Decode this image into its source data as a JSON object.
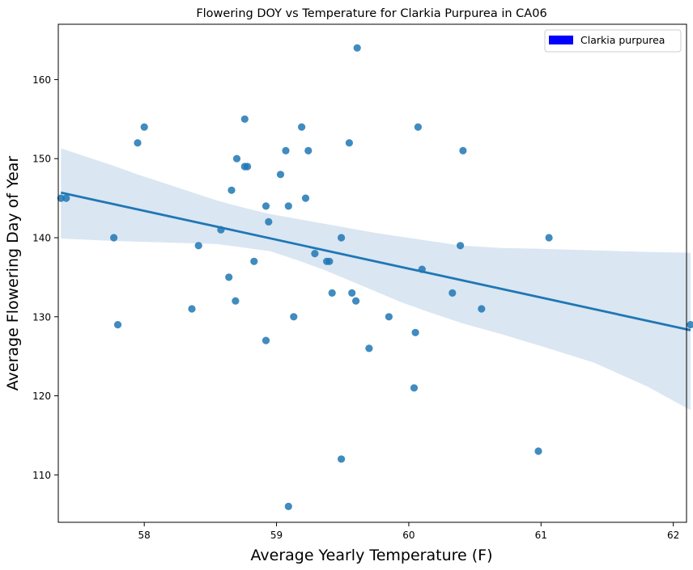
{
  "chart_data": {
    "type": "scatter",
    "title": "Flowering DOY vs Temperature for Clarkia Purpurea in CA06",
    "xlabel": "Average Yearly Temperature (F)",
    "ylabel": "Average Flowering Day of Year",
    "xlim": [
      57.35,
      62.1
    ],
    "ylim": [
      104.0,
      167.0
    ],
    "xticks": [
      "58",
      "59",
      "60",
      "61",
      "62"
    ],
    "yticks": [
      "110",
      "120",
      "130",
      "140",
      "150",
      "160"
    ],
    "legend": {
      "label": "Clarkia purpurea",
      "color": "#0000ff",
      "position": "top-right"
    },
    "grid": false,
    "series": [
      {
        "name": "Clarkia purpurea",
        "color": "#1f77b4",
        "points": [
          [
            57.37,
            145
          ],
          [
            57.41,
            145
          ],
          [
            57.77,
            140
          ],
          [
            57.8,
            129
          ],
          [
            57.95,
            152
          ],
          [
            58.0,
            154
          ],
          [
            58.36,
            131
          ],
          [
            58.41,
            139
          ],
          [
            58.58,
            141
          ],
          [
            58.64,
            135
          ],
          [
            58.66,
            146
          ],
          [
            58.69,
            132
          ],
          [
            58.7,
            150
          ],
          [
            58.76,
            155
          ],
          [
            58.76,
            149
          ],
          [
            58.78,
            149
          ],
          [
            58.83,
            137
          ],
          [
            58.92,
            144
          ],
          [
            58.92,
            127
          ],
          [
            58.94,
            142
          ],
          [
            59.03,
            148
          ],
          [
            59.07,
            151
          ],
          [
            59.09,
            144
          ],
          [
            59.09,
            106
          ],
          [
            59.13,
            130
          ],
          [
            59.19,
            154
          ],
          [
            59.22,
            145
          ],
          [
            59.24,
            151
          ],
          [
            59.29,
            138
          ],
          [
            59.38,
            137
          ],
          [
            59.4,
            137
          ],
          [
            59.42,
            133
          ],
          [
            59.49,
            140
          ],
          [
            59.49,
            112
          ],
          [
            59.55,
            152
          ],
          [
            59.57,
            133
          ],
          [
            59.6,
            132
          ],
          [
            59.61,
            164
          ],
          [
            59.7,
            126
          ],
          [
            59.85,
            130
          ],
          [
            60.04,
            121
          ],
          [
            60.05,
            128
          ],
          [
            60.07,
            154
          ],
          [
            60.1,
            136
          ],
          [
            60.33,
            133
          ],
          [
            60.39,
            139
          ],
          [
            60.41,
            151
          ],
          [
            60.55,
            131
          ],
          [
            60.98,
            113
          ],
          [
            61.06,
            140
          ],
          [
            62.13,
            129
          ]
        ]
      }
    ],
    "regression": {
      "color": "#1f77b4",
      "ci_color": "#dae6f2",
      "line": [
        [
          57.37,
          145.7
        ],
        [
          62.13,
          128.3
        ]
      ],
      "ci_upper": [
        [
          57.37,
          151.3
        ],
        [
          57.55,
          150.3
        ],
        [
          57.75,
          149.2
        ],
        [
          57.95,
          148.0
        ],
        [
          58.15,
          146.9
        ],
        [
          58.35,
          145.8
        ],
        [
          58.55,
          144.7
        ],
        [
          58.75,
          143.8
        ],
        [
          58.95,
          143.0
        ],
        [
          59.15,
          142.4
        ],
        [
          59.35,
          141.8
        ],
        [
          59.55,
          141.2
        ],
        [
          59.75,
          140.6
        ],
        [
          59.95,
          140.1
        ],
        [
          60.15,
          139.6
        ],
        [
          60.4,
          139.0
        ],
        [
          60.7,
          138.7
        ],
        [
          61.0,
          138.6
        ],
        [
          61.4,
          138.4
        ],
        [
          61.8,
          138.2
        ],
        [
          62.13,
          138.1
        ]
      ],
      "ci_lower": [
        [
          57.37,
          139.9
        ],
        [
          57.75,
          139.6
        ],
        [
          58.15,
          139.4
        ],
        [
          58.55,
          139.2
        ],
        [
          58.95,
          138.3
        ],
        [
          59.15,
          137.2
        ],
        [
          59.35,
          136.0
        ],
        [
          59.55,
          134.6
        ],
        [
          59.75,
          133.2
        ],
        [
          59.95,
          131.8
        ],
        [
          60.15,
          130.6
        ],
        [
          60.4,
          129.2
        ],
        [
          60.7,
          127.8
        ],
        [
          61.0,
          126.3
        ],
        [
          61.4,
          124.2
        ],
        [
          61.8,
          121.2
        ],
        [
          62.13,
          118.2
        ]
      ]
    }
  }
}
